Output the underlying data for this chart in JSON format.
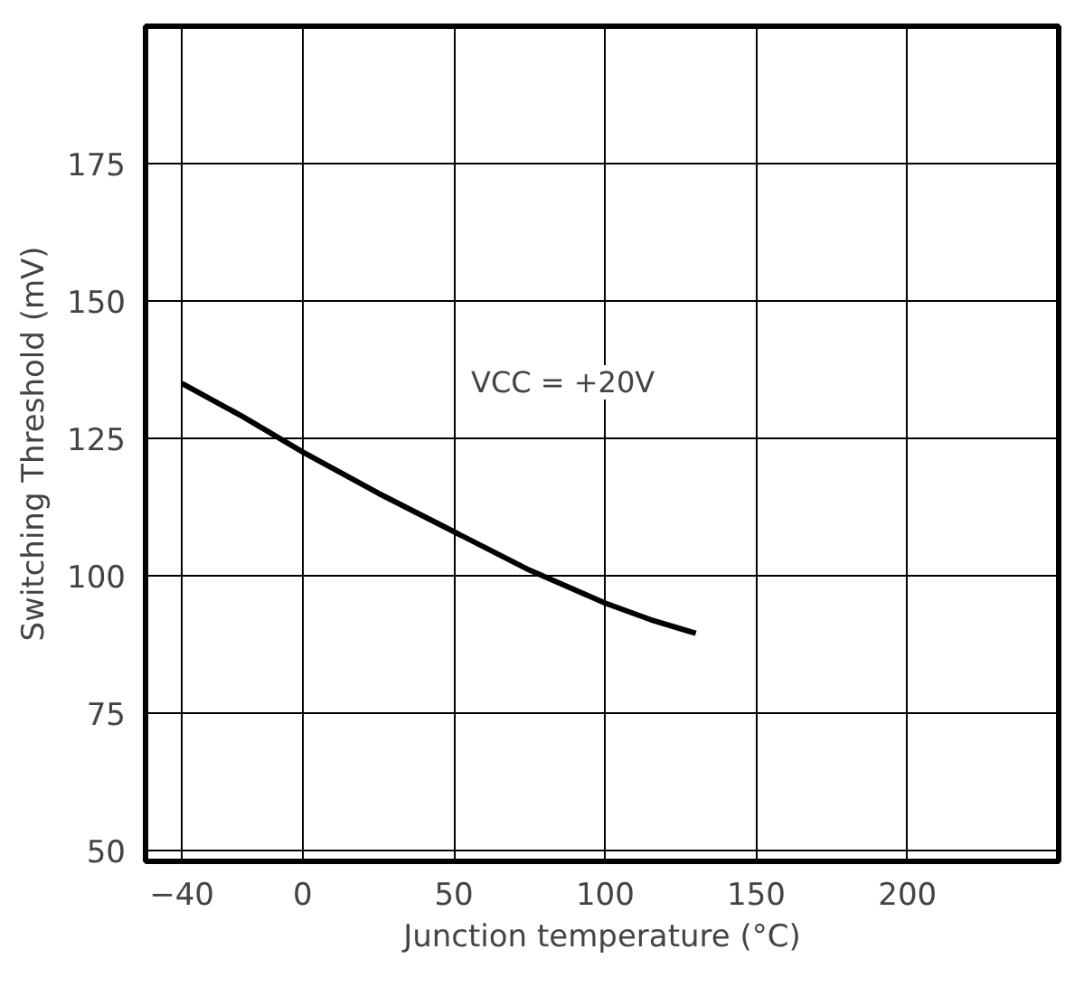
{
  "chart_data": {
    "type": "line",
    "xlabel": "Junction temperature (°C)",
    "ylabel": "Switching Threshold (mV)",
    "x": [
      -40,
      -20,
      0,
      25,
      50,
      75,
      100,
      115,
      130
    ],
    "series": [
      {
        "color": "#000000",
        "values": [
          135,
          129,
          122.5,
          115,
          108,
          101,
          95,
          92,
          89.5
        ]
      }
    ],
    "xlim": [
      -52,
      250
    ],
    "ylim": [
      48,
      200
    ],
    "xticks": [
      -40,
      0,
      50,
      100,
      150,
      200
    ],
    "yticks": [
      50,
      75,
      100,
      125,
      150,
      175
    ],
    "grid": true,
    "marker": "none",
    "line_style": "solid",
    "annotations": [
      "VCC = +20V"
    ]
  }
}
